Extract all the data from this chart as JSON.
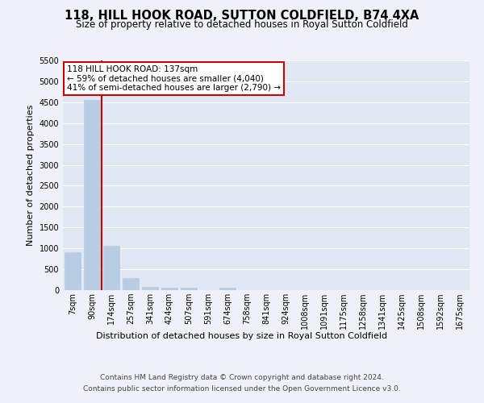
{
  "title": "118, HILL HOOK ROAD, SUTTON COLDFIELD, B74 4XA",
  "subtitle": "Size of property relative to detached houses in Royal Sutton Coldfield",
  "xlabel": "Distribution of detached houses by size in Royal Sutton Coldfield",
  "ylabel": "Number of detached properties",
  "footnote1": "Contains HM Land Registry data © Crown copyright and database right 2024.",
  "footnote2": "Contains public sector information licensed under the Open Government Licence v3.0.",
  "categories": [
    "7sqm",
    "90sqm",
    "174sqm",
    "257sqm",
    "341sqm",
    "424sqm",
    "507sqm",
    "591sqm",
    "674sqm",
    "758sqm",
    "841sqm",
    "924sqm",
    "1008sqm",
    "1091sqm",
    "1175sqm",
    "1258sqm",
    "1341sqm",
    "1425sqm",
    "1508sqm",
    "1592sqm",
    "1675sqm"
  ],
  "values": [
    900,
    4560,
    1060,
    295,
    80,
    65,
    55,
    0,
    60,
    0,
    0,
    0,
    0,
    0,
    0,
    0,
    0,
    0,
    0,
    0,
    0
  ],
  "bar_color": "#b8cce4",
  "bar_edge_color": "#b8cce4",
  "highlight_color": "#cc0000",
  "vline_x": 1.5,
  "property_label": "118 HILL HOOK ROAD: 137sqm",
  "annotation_line1": "← 59% of detached houses are smaller (4,040)",
  "annotation_line2": "41% of semi-detached houses are larger (2,790) →",
  "ylim": [
    0,
    5500
  ],
  "yticks": [
    0,
    500,
    1000,
    1500,
    2000,
    2500,
    3000,
    3500,
    4000,
    4500,
    5000,
    5500
  ],
  "bg_color": "#eef2f8",
  "plot_bg_color": "#e0e8f4",
  "grid_color": "#ffffff",
  "annotation_box_color": "#ffffff",
  "annotation_box_edge": "#cc0000",
  "title_fontsize": 10.5,
  "subtitle_fontsize": 8.5,
  "axis_label_fontsize": 8,
  "tick_fontsize": 7,
  "annotation_fontsize": 7.5,
  "footnote_fontsize": 6.5
}
